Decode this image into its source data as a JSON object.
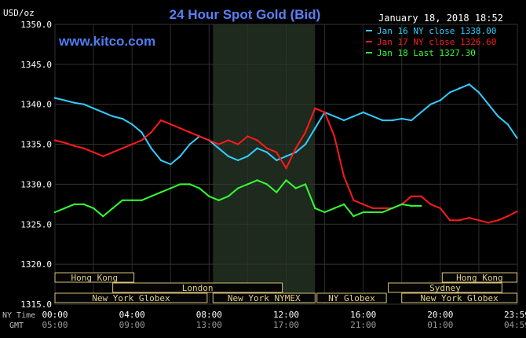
{
  "chart_data": {
    "type": "line",
    "title": "24 Hour Spot Gold (Bid)",
    "ylabel": "USD/oz",
    "timestamp": "January 18, 2018 18:52",
    "watermark": "www.kitco.com",
    "ylim": [
      1315,
      1350
    ],
    "y_ticks": [
      "1350.0",
      "1345.0",
      "1340.0",
      "1335.0",
      "1330.0",
      "1325.0",
      "1320.0",
      "1315.0"
    ],
    "y_tick_values": [
      1350,
      1345,
      1340,
      1335,
      1330,
      1325,
      1320,
      1315
    ],
    "xlim": [
      0,
      24
    ],
    "x_ticks_ny": [
      "00:00",
      "04:00",
      "08:00",
      "12:00",
      "16:00",
      "20:00",
      "23:59"
    ],
    "x_ticks_gmt": [
      "05:00",
      "09:00",
      "13:00",
      "17:00",
      "21:00",
      "01:00",
      "04:59"
    ],
    "x_tick_hours": [
      0,
      4,
      8,
      12,
      16,
      20,
      23.98
    ],
    "x_row_labels": {
      "ny": "NY Time",
      "gmt": "GMT"
    },
    "shaded_session": {
      "label": "New York NYMEX",
      "start_hour": 8.2,
      "end_hour": 13.5
    },
    "grid": true,
    "legend_position": "top-right",
    "series": [
      {
        "name": "Jan 16 NY close 1338.00",
        "color": "#33ccff",
        "x": [
          0,
          0.5,
          1,
          1.5,
          2,
          2.5,
          3,
          3.5,
          4,
          4.5,
          5,
          5.5,
          6,
          6.5,
          7,
          7.5,
          8,
          8.5,
          9,
          9.5,
          10,
          10.5,
          11,
          11.5,
          12,
          12.5,
          13,
          13.5,
          14,
          14.5,
          15,
          15.5,
          16,
          16.5,
          17,
          17.5,
          18,
          18.5,
          19,
          19.5,
          20,
          20.5,
          21,
          21.5,
          22,
          22.5,
          23,
          23.5,
          23.98
        ],
        "values": [
          1340.8,
          1340.5,
          1340.2,
          1340.0,
          1339.5,
          1339.0,
          1338.5,
          1338.2,
          1337.5,
          1336.5,
          1334.5,
          1333.0,
          1332.5,
          1333.5,
          1335.0,
          1336.0,
          1335.5,
          1334.5,
          1333.5,
          1333.0,
          1333.5,
          1334.5,
          1334.0,
          1333.0,
          1333.5,
          1334.0,
          1335.0,
          1337.0,
          1339.0,
          1338.5,
          1338.0,
          1338.5,
          1339.0,
          1338.5,
          1338.0,
          1338.0,
          1338.2,
          1338.0,
          1339.0,
          1340.0,
          1340.5,
          1341.5,
          1342.0,
          1342.5,
          1341.5,
          1340.0,
          1338.5,
          1337.5,
          1335.8
        ]
      },
      {
        "name": "Jan 17 NY close 1326.60",
        "color": "#ff1a1a",
        "x": [
          0,
          0.5,
          1,
          1.5,
          2,
          2.5,
          3,
          3.5,
          4,
          4.5,
          5,
          5.5,
          6,
          6.5,
          7,
          7.5,
          8,
          8.5,
          9,
          9.5,
          10,
          10.5,
          11,
          11.5,
          12,
          12.5,
          13,
          13.5,
          14,
          14.5,
          15,
          15.5,
          16,
          16.5,
          17,
          17.5,
          18,
          18.5,
          19,
          19.5,
          20,
          20.5,
          21,
          21.5,
          22,
          22.5,
          23,
          23.5,
          23.98
        ],
        "values": [
          1335.5,
          1335.2,
          1334.8,
          1334.5,
          1334.0,
          1333.5,
          1334.0,
          1334.5,
          1335.0,
          1335.5,
          1336.5,
          1338.0,
          1337.5,
          1337.0,
          1336.5,
          1336.0,
          1335.5,
          1335.0,
          1335.5,
          1335.0,
          1336.0,
          1335.5,
          1334.5,
          1334.0,
          1332.0,
          1334.5,
          1336.5,
          1339.5,
          1339.0,
          1336.0,
          1331.0,
          1328.0,
          1327.5,
          1327.0,
          1327.0,
          1327.0,
          1327.5,
          1328.5,
          1328.5,
          1327.5,
          1327.0,
          1325.5,
          1325.5,
          1325.8,
          1325.5,
          1325.2,
          1325.5,
          1326.0,
          1326.6
        ]
      },
      {
        "name": "Jan 18 Last 1327.30",
        "color": "#33ff33",
        "x": [
          0,
          0.5,
          1,
          1.5,
          2,
          2.5,
          3,
          3.5,
          4,
          4.5,
          5,
          5.5,
          6,
          6.5,
          7,
          7.5,
          8,
          8.5,
          9,
          9.5,
          10,
          10.5,
          11,
          11.5,
          12,
          12.5,
          13,
          13.5,
          14,
          14.5,
          15,
          15.5,
          16,
          16.5,
          17,
          17.5,
          18,
          18.5,
          19
        ],
        "values": [
          1326.5,
          1327.0,
          1327.5,
          1327.5,
          1327.0,
          1326.0,
          1327.0,
          1328.0,
          1328.0,
          1328.0,
          1328.5,
          1329.0,
          1329.5,
          1330.0,
          1330.0,
          1329.5,
          1328.5,
          1328.0,
          1328.5,
          1329.5,
          1330.0,
          1330.5,
          1330.0,
          1329.0,
          1330.5,
          1329.5,
          1330.0,
          1327.0,
          1326.5,
          1327.0,
          1327.5,
          1326.0,
          1326.5,
          1326.5,
          1326.5,
          1327.0,
          1327.5,
          1327.3,
          1327.3
        ]
      }
    ],
    "sessions": [
      {
        "label": "Hong Kong",
        "row": 0,
        "start_hour": 0,
        "end_hour": 4.1
      },
      {
        "label": "London",
        "row": 1,
        "start_hour": 3.0,
        "end_hour": 11.8
      },
      {
        "label": "New York Globex",
        "row": 2,
        "start_hour": 0,
        "end_hour": 7.9
      },
      {
        "label": "New York NYMEX",
        "row": 2,
        "start_hour": 8.2,
        "end_hour": 13.5
      },
      {
        "label": "NY Globex",
        "row": 2,
        "start_hour": 13.6,
        "end_hour": 17.2
      },
      {
        "label": "Hong Kong",
        "row": 0,
        "start_hour": 20.1,
        "end_hour": 23.98
      },
      {
        "label": "Sydney",
        "row": 1,
        "start_hour": 17.3,
        "end_hour": 23.2
      },
      {
        "label": "New York Globex",
        "row": 2,
        "start_hour": 18.0,
        "end_hour": 23.98
      }
    ]
  }
}
